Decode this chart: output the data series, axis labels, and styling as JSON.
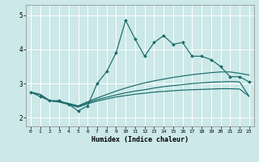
{
  "title": "",
  "xlabel": "Humidex (Indice chaleur)",
  "xlim": [
    -0.5,
    23.5
  ],
  "ylim": [
    1.75,
    5.3
  ],
  "xticks": [
    0,
    1,
    2,
    3,
    4,
    5,
    6,
    7,
    8,
    9,
    10,
    11,
    12,
    13,
    14,
    15,
    16,
    17,
    18,
    19,
    20,
    21,
    22,
    23
  ],
  "yticks": [
    2,
    3,
    4,
    5
  ],
  "background_color": "#cce8e8",
  "grid_color": "#b8d8d8",
  "line_color": "#1a6b6b",
  "main_line_x": [
    0,
    1,
    2,
    3,
    4,
    5,
    6,
    7,
    8,
    9,
    10,
    11,
    12,
    13,
    14,
    15,
    16,
    17,
    18,
    19,
    20,
    21,
    22,
    23
  ],
  "main_line_y": [
    2.75,
    2.62,
    2.5,
    2.5,
    2.4,
    2.2,
    2.35,
    3.0,
    3.35,
    3.9,
    4.85,
    4.3,
    3.8,
    4.2,
    4.4,
    4.15,
    4.2,
    3.8,
    3.8,
    3.7,
    3.5,
    3.2,
    3.2,
    3.05
  ],
  "line2_x": [
    0,
    1,
    2,
    3,
    4,
    5,
    6,
    7,
    8,
    9,
    10,
    11,
    12,
    13,
    14,
    15,
    16,
    17,
    18,
    19,
    20,
    21,
    22,
    23
  ],
  "line2_y": [
    2.75,
    2.68,
    2.5,
    2.48,
    2.42,
    2.35,
    2.47,
    2.58,
    2.68,
    2.78,
    2.87,
    2.95,
    3.02,
    3.08,
    3.13,
    3.18,
    3.22,
    3.26,
    3.29,
    3.32,
    3.34,
    3.34,
    3.3,
    3.25
  ],
  "line3_x": [
    0,
    1,
    2,
    3,
    4,
    5,
    6,
    7,
    8,
    9,
    10,
    11,
    12,
    13,
    14,
    15,
    16,
    17,
    18,
    19,
    20,
    21,
    22,
    23
  ],
  "line3_y": [
    2.75,
    2.68,
    2.5,
    2.47,
    2.4,
    2.33,
    2.44,
    2.53,
    2.6,
    2.67,
    2.73,
    2.78,
    2.82,
    2.87,
    2.91,
    2.94,
    2.97,
    3.0,
    3.02,
    3.04,
    3.05,
    3.06,
    3.05,
    2.63
  ],
  "line4_x": [
    0,
    1,
    2,
    3,
    4,
    5,
    6,
    7,
    8,
    9,
    10,
    11,
    12,
    13,
    14,
    15,
    16,
    17,
    18,
    19,
    20,
    21,
    22,
    23
  ],
  "line4_y": [
    2.75,
    2.68,
    2.5,
    2.46,
    2.39,
    2.31,
    2.41,
    2.49,
    2.55,
    2.61,
    2.65,
    2.69,
    2.72,
    2.75,
    2.77,
    2.79,
    2.81,
    2.82,
    2.83,
    2.84,
    2.85,
    2.85,
    2.84,
    2.63
  ]
}
